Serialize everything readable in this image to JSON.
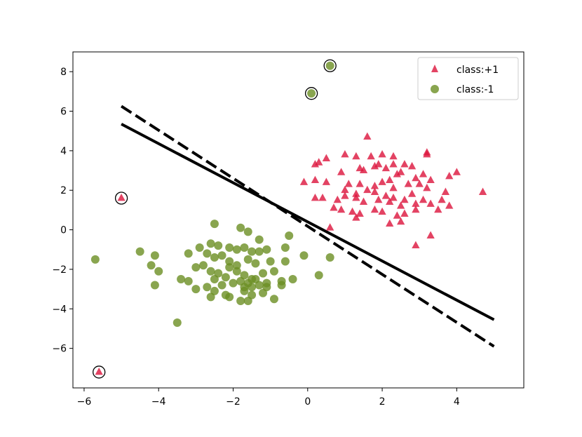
{
  "chart_data": {
    "type": "scatter",
    "title": "",
    "xlabel": "",
    "ylabel": "",
    "xlim": [
      -6.3,
      5.8
    ],
    "ylim": [
      -8.0,
      9.0
    ],
    "xticks": [
      -6,
      -4,
      -2,
      0,
      2,
      4
    ],
    "yticks": [
      -6,
      -4,
      -2,
      0,
      2,
      4,
      6,
      8
    ],
    "tick_labels_x": [
      "−6",
      "−4",
      "−2",
      "0",
      "2",
      "4"
    ],
    "tick_labels_y": [
      "−6",
      "−4",
      "−2",
      "0",
      "2",
      "4",
      "6",
      "8"
    ],
    "grid": false,
    "legend_position": "top-right",
    "series": [
      {
        "name": "class:+1",
        "marker": "triangle",
        "color": "#dc143c",
        "points": [
          [
            1.6,
            4.7
          ],
          [
            1.0,
            3.8
          ],
          [
            1.3,
            3.7
          ],
          [
            1.7,
            3.7
          ],
          [
            2.0,
            3.8
          ],
          [
            2.3,
            3.7
          ],
          [
            3.2,
            3.8
          ],
          [
            3.2,
            3.9
          ],
          [
            0.5,
            3.6
          ],
          [
            0.3,
            3.4
          ],
          [
            0.2,
            3.3
          ],
          [
            1.4,
            3.1
          ],
          [
            1.5,
            3.0
          ],
          [
            1.8,
            3.2
          ],
          [
            1.9,
            3.3
          ],
          [
            2.1,
            3.1
          ],
          [
            2.3,
            3.3
          ],
          [
            2.6,
            3.3
          ],
          [
            2.8,
            3.2
          ],
          [
            2.5,
            2.9
          ],
          [
            0.9,
            2.9
          ],
          [
            2.2,
            2.5
          ],
          [
            2.4,
            2.8
          ],
          [
            2.9,
            2.6
          ],
          [
            3.1,
            2.8
          ],
          [
            3.3,
            2.5
          ],
          [
            3.8,
            2.7
          ],
          [
            4.0,
            2.9
          ],
          [
            -0.1,
            2.4
          ],
          [
            0.2,
            2.5
          ],
          [
            0.5,
            2.4
          ],
          [
            1.1,
            2.3
          ],
          [
            1.4,
            2.3
          ],
          [
            1.8,
            2.2
          ],
          [
            2.0,
            2.4
          ],
          [
            2.3,
            2.1
          ],
          [
            2.7,
            2.3
          ],
          [
            3.0,
            2.3
          ],
          [
            3.2,
            2.1
          ],
          [
            1.0,
            2.0
          ],
          [
            1.3,
            1.8
          ],
          [
            1.6,
            2.0
          ],
          [
            1.8,
            1.9
          ],
          [
            2.1,
            1.7
          ],
          [
            2.3,
            1.6
          ],
          [
            2.6,
            1.5
          ],
          [
            2.8,
            1.8
          ],
          [
            3.1,
            1.5
          ],
          [
            3.7,
            1.9
          ],
          [
            4.7,
            1.9
          ],
          [
            0.2,
            1.6
          ],
          [
            0.4,
            1.6
          ],
          [
            0.8,
            1.5
          ],
          [
            1.0,
            1.7
          ],
          [
            1.3,
            1.6
          ],
          [
            1.5,
            1.4
          ],
          [
            1.9,
            1.5
          ],
          [
            2.2,
            1.4
          ],
          [
            2.5,
            1.2
          ],
          [
            2.9,
            1.3
          ],
          [
            3.3,
            1.3
          ],
          [
            3.6,
            1.5
          ],
          [
            3.8,
            1.2
          ],
          [
            0.7,
            1.1
          ],
          [
            0.9,
            1.0
          ],
          [
            1.2,
            0.9
          ],
          [
            1.4,
            0.8
          ],
          [
            1.8,
            1.0
          ],
          [
            2.0,
            0.9
          ],
          [
            2.4,
            0.7
          ],
          [
            2.6,
            0.8
          ],
          [
            2.9,
            1.0
          ],
          [
            3.5,
            1.0
          ],
          [
            1.3,
            0.6
          ],
          [
            2.2,
            0.3
          ],
          [
            2.5,
            0.4
          ],
          [
            0.6,
            0.1
          ],
          [
            2.9,
            -0.8
          ],
          [
            3.3,
            -0.3
          ],
          [
            -5.0,
            1.6
          ],
          [
            -5.6,
            -7.2
          ]
        ],
        "support_vectors": [
          [
            -5.0,
            1.6
          ],
          [
            -5.6,
            -7.2
          ]
        ]
      },
      {
        "name": "class:-1",
        "marker": "circle",
        "color": "#6b8e23",
        "points": [
          [
            -2.5,
            0.3
          ],
          [
            -1.8,
            0.1
          ],
          [
            -1.6,
            -0.1
          ],
          [
            -0.5,
            -0.3
          ],
          [
            -2.6,
            -0.7
          ],
          [
            -2.4,
            -0.8
          ],
          [
            -1.3,
            -0.5
          ],
          [
            -0.6,
            -0.9
          ],
          [
            -2.9,
            -0.9
          ],
          [
            -3.2,
            -1.2
          ],
          [
            -2.1,
            -0.9
          ],
          [
            -1.9,
            -1.0
          ],
          [
            -1.7,
            -0.9
          ],
          [
            -1.5,
            -1.1
          ],
          [
            -1.3,
            -1.1
          ],
          [
            -1.1,
            -1.0
          ],
          [
            -4.5,
            -1.1
          ],
          [
            -4.1,
            -1.3
          ],
          [
            -5.7,
            -1.5
          ],
          [
            -2.7,
            -1.2
          ],
          [
            -2.5,
            -1.4
          ],
          [
            -2.3,
            -1.3
          ],
          [
            -2.1,
            -1.6
          ],
          [
            -1.9,
            -1.8
          ],
          [
            -1.6,
            -1.5
          ],
          [
            -1.4,
            -1.7
          ],
          [
            -1.0,
            -1.6
          ],
          [
            -0.6,
            -1.6
          ],
          [
            -0.1,
            -1.3
          ],
          [
            0.6,
            -1.4
          ],
          [
            -4.2,
            -1.8
          ],
          [
            -4.0,
            -2.1
          ],
          [
            -3.0,
            -1.9
          ],
          [
            -2.8,
            -1.8
          ],
          [
            -2.6,
            -2.1
          ],
          [
            -2.4,
            -2.2
          ],
          [
            -2.1,
            -1.9
          ],
          [
            -1.9,
            -2.1
          ],
          [
            -1.7,
            -2.3
          ],
          [
            -1.5,
            -2.5
          ],
          [
            -1.2,
            -2.2
          ],
          [
            -0.9,
            -2.1
          ],
          [
            -0.4,
            -2.5
          ],
          [
            0.3,
            -2.3
          ],
          [
            -3.4,
            -2.5
          ],
          [
            -3.2,
            -2.6
          ],
          [
            -2.5,
            -2.5
          ],
          [
            -2.2,
            -2.4
          ],
          [
            -1.8,
            -2.6
          ],
          [
            -1.6,
            -2.7
          ],
          [
            -1.4,
            -2.5
          ],
          [
            -1.1,
            -2.7
          ],
          [
            -0.7,
            -2.6
          ],
          [
            -4.1,
            -2.8
          ],
          [
            -3.0,
            -3.0
          ],
          [
            -2.7,
            -2.9
          ],
          [
            -2.3,
            -2.8
          ],
          [
            -2.0,
            -2.7
          ],
          [
            -1.7,
            -2.9
          ],
          [
            -1.5,
            -2.9
          ],
          [
            -1.3,
            -2.8
          ],
          [
            -1.1,
            -2.9
          ],
          [
            -0.7,
            -2.8
          ],
          [
            -2.5,
            -3.1
          ],
          [
            -1.7,
            -3.1
          ],
          [
            -1.2,
            -3.2
          ],
          [
            -2.2,
            -3.3
          ],
          [
            -1.5,
            -3.3
          ],
          [
            -2.6,
            -3.4
          ],
          [
            -2.1,
            -3.4
          ],
          [
            -0.9,
            -3.5
          ],
          [
            -1.8,
            -3.6
          ],
          [
            -1.6,
            -3.6
          ],
          [
            -3.5,
            -4.7
          ],
          [
            0.1,
            6.9
          ],
          [
            0.6,
            8.3
          ]
        ],
        "support_vectors": [
          [
            0.1,
            6.9
          ],
          [
            0.6,
            8.3
          ]
        ]
      }
    ],
    "lines": [
      {
        "style": "solid",
        "x": [
          -5.0,
          5.0
        ],
        "y": [
          5.35,
          -4.55
        ]
      },
      {
        "style": "dashed",
        "x": [
          -5.0,
          5.0
        ],
        "y": [
          6.25,
          -5.9
        ]
      }
    ]
  }
}
